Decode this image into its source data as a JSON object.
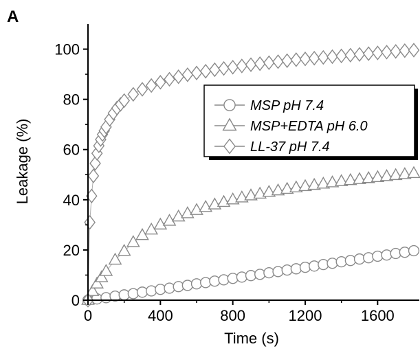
{
  "chart_data": {
    "type": "scatter",
    "panel_label": "A",
    "title": "",
    "xlabel": "Time (s)",
    "ylabel": "Leakage (%)",
    "xlim": [
      0,
      1800
    ],
    "ylim": [
      0,
      110
    ],
    "xticks": [
      0,
      400,
      800,
      1200,
      1600
    ],
    "yticks": [
      0,
      20,
      40,
      60,
      80,
      100
    ],
    "xtick_labels": [
      "0",
      "400",
      "800",
      "1200",
      "1600"
    ],
    "ytick_labels": [
      "0",
      "20",
      "40",
      "60",
      "80",
      "100"
    ],
    "grid": false,
    "legend_position": "top-right",
    "series": [
      {
        "name": "MSP pH 7.4",
        "marker": "circle",
        "color": "#9a9a9a",
        "x": [
          0,
          50,
          100,
          150,
          200,
          250,
          300,
          350,
          400,
          450,
          500,
          550,
          600,
          650,
          700,
          750,
          800,
          850,
          900,
          950,
          1000,
          1050,
          1100,
          1150,
          1200,
          1250,
          1300,
          1350,
          1400,
          1450,
          1500,
          1550,
          1600,
          1650,
          1700,
          1750,
          1800
        ],
        "y": [
          0,
          0.5,
          1.0,
          1.6,
          2.1,
          2.6,
          3.2,
          3.7,
          4.3,
          4.8,
          5.4,
          5.9,
          6.5,
          7.0,
          7.6,
          8.1,
          8.7,
          9.2,
          9.8,
          10.3,
          10.9,
          11.4,
          12.0,
          12.5,
          13.1,
          13.6,
          14.2,
          14.7,
          15.3,
          15.8,
          16.4,
          16.9,
          17.5,
          18.0,
          18.6,
          19.1,
          19.7
        ]
      },
      {
        "name": "MSP+EDTA pH 6.0",
        "marker": "triangle",
        "color": "#9a9a9a",
        "x": [
          0,
          25,
          50,
          75,
          100,
          150,
          200,
          250,
          300,
          350,
          400,
          450,
          500,
          550,
          600,
          650,
          700,
          750,
          800,
          850,
          900,
          950,
          1000,
          1050,
          1100,
          1150,
          1200,
          1250,
          1300,
          1350,
          1400,
          1450,
          1500,
          1550,
          1600,
          1650,
          1700,
          1750,
          1800
        ],
        "y": [
          0,
          3.5,
          6.5,
          9.0,
          11.5,
          16.0,
          19.5,
          23.0,
          25.8,
          28.0,
          30.0,
          31.5,
          33.2,
          34.5,
          35.8,
          37.0,
          38.0,
          39.0,
          40.0,
          40.8,
          41.6,
          42.3,
          43.0,
          43.6,
          44.2,
          44.8,
          45.3,
          45.8,
          46.3,
          46.8,
          47.3,
          47.7,
          48.1,
          48.5,
          48.9,
          49.3,
          49.7,
          50.1,
          50.5
        ]
      },
      {
        "name": "LL-37 pH 7.4",
        "marker": "diamond",
        "color": "#9a9a9a",
        "x": [
          0,
          10,
          20,
          30,
          40,
          50,
          60,
          70,
          80,
          90,
          100,
          120,
          140,
          160,
          180,
          200,
          250,
          300,
          350,
          400,
          450,
          500,
          550,
          600,
          650,
          700,
          750,
          800,
          850,
          900,
          950,
          1000,
          1050,
          1100,
          1150,
          1200,
          1250,
          1300,
          1350,
          1400,
          1450,
          1500,
          1550,
          1600,
          1650,
          1700,
          1750,
          1800
        ],
        "y": [
          0,
          31,
          41.5,
          49.5,
          54.5,
          58.5,
          61.5,
          64.0,
          66.0,
          67.5,
          69.0,
          72.0,
          74.5,
          76.5,
          78.0,
          79.5,
          82.0,
          84.0,
          85.5,
          86.8,
          88.0,
          89.0,
          89.8,
          90.5,
          91.2,
          91.8,
          92.3,
          92.8,
          93.3,
          93.8,
          94.2,
          94.6,
          95.0,
          95.4,
          95.8,
          96.1,
          96.4,
          96.7,
          97.0,
          97.3,
          97.6,
          97.9,
          98.2,
          98.5,
          98.8,
          99.1,
          99.4,
          99.6
        ]
      }
    ]
  }
}
